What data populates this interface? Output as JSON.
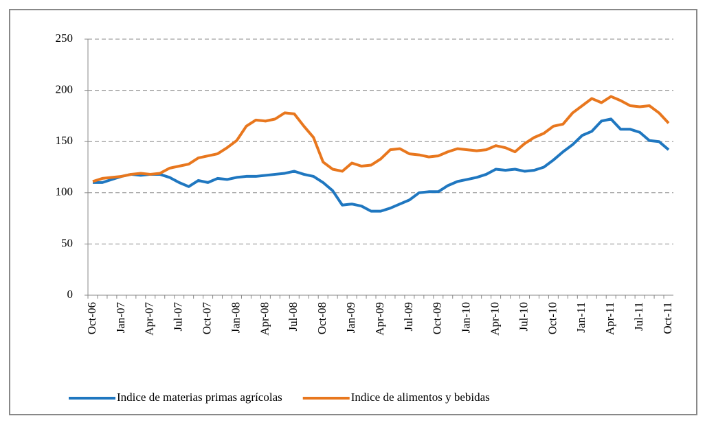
{
  "chart_data": {
    "type": "line",
    "categories": [
      "Oct-06",
      null,
      null,
      "Jan-07",
      null,
      null,
      "Apr-07",
      null,
      null,
      "Jul-07",
      null,
      null,
      "Oct-07",
      null,
      null,
      "Jan-08",
      null,
      null,
      "Apr-08",
      null,
      null,
      "Jul-08",
      null,
      null,
      "Oct-08",
      null,
      null,
      "Jan-09",
      null,
      null,
      "Apr-09",
      null,
      null,
      "Jul-09",
      null,
      null,
      "Oct-09",
      null,
      null,
      "Jan-10",
      null,
      null,
      "Apr-10",
      null,
      null,
      "Jul-10",
      null,
      null,
      "Oct-10",
      null,
      null,
      "Jan-11",
      null,
      null,
      "Apr-11",
      null,
      null,
      "Jul-11",
      null,
      null,
      "Oct-11"
    ],
    "series": [
      {
        "name": "Indice de materias primas agrícolas",
        "color": "#1f77c0",
        "values": [
          110,
          110,
          113,
          116,
          118,
          117,
          118,
          118,
          115,
          110,
          106,
          112,
          110,
          114,
          113,
          115,
          116,
          116,
          117,
          118,
          119,
          121,
          118,
          116,
          110,
          102,
          88,
          89,
          87,
          82,
          82,
          85,
          89,
          93,
          100,
          101,
          101,
          107,
          111,
          113,
          115,
          118,
          123,
          122,
          123,
          121,
          122,
          125,
          132,
          140,
          147,
          156,
          160,
          170,
          172,
          162,
          162,
          159,
          151,
          150,
          142
        ]
      },
      {
        "name": "Indice de alimentos y bebidas",
        "color": "#e8771e",
        "values": [
          111,
          114,
          115,
          116,
          118,
          119,
          118,
          119,
          124,
          126,
          128,
          134,
          136,
          138,
          144,
          151,
          165,
          171,
          170,
          172,
          178,
          177,
          165,
          154,
          130,
          123,
          121,
          129,
          126,
          127,
          133,
          142,
          143,
          138,
          137,
          135,
          136,
          140,
          143,
          142,
          141,
          142,
          146,
          144,
          140,
          148,
          154,
          158,
          165,
          167,
          178,
          185,
          192,
          188,
          194,
          190,
          185,
          184,
          185,
          178,
          168
        ]
      }
    ],
    "ylim": [
      0,
      250
    ],
    "yticks": [
      0,
      50,
      100,
      150,
      200,
      250
    ],
    "grid": true,
    "legend": "bottom"
  }
}
